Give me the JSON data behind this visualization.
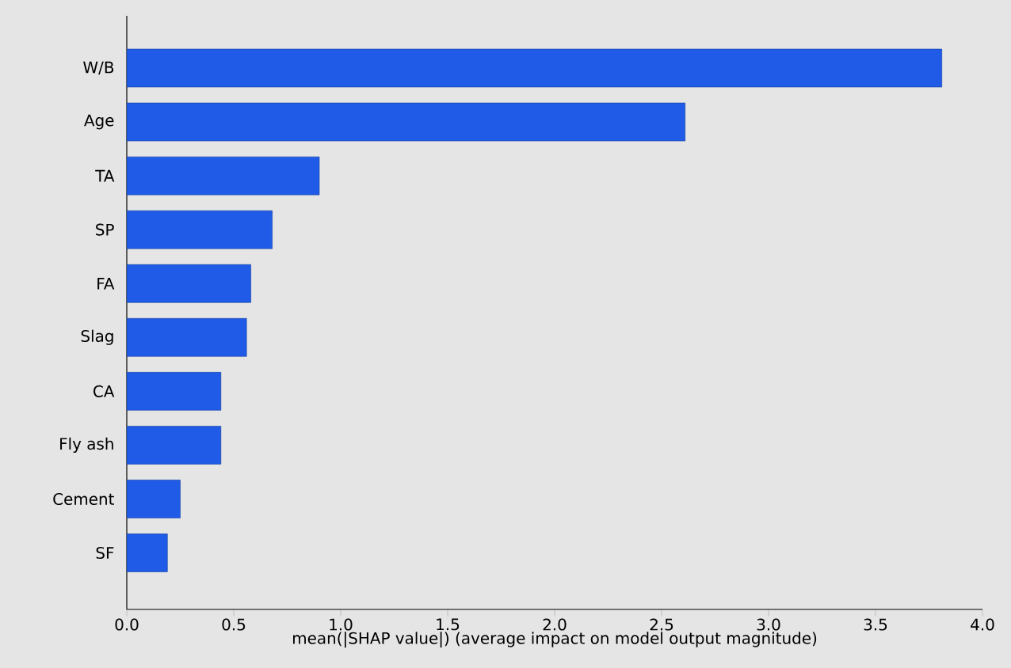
{
  "chart_data": {
    "type": "bar",
    "orientation": "horizontal",
    "xlabel": "mean(|SHAP value|) (average impact on model output magnitude)",
    "categories": [
      "W/B",
      "Age",
      "TA",
      "SP",
      "FA",
      "Slag",
      "CA",
      "Fly ash",
      "Cement",
      "SF"
    ],
    "values": [
      3.81,
      2.61,
      0.9,
      0.68,
      0.58,
      0.56,
      0.44,
      0.44,
      0.25,
      0.19
    ],
    "color": "#1f5be6",
    "xlim": [
      0,
      4.0
    ],
    "xticks": [
      {
        "value": 0,
        "label": "0.0"
      },
      0.5,
      {
        "value": 1,
        "label": "1.0"
      },
      1.5,
      {
        "value": 2,
        "label": "2.0"
      },
      2.5,
      {
        "value": 3,
        "label": "3.0"
      },
      3.5,
      {
        "value": 4,
        "label": "4.0"
      }
    ],
    "grid": false
  }
}
